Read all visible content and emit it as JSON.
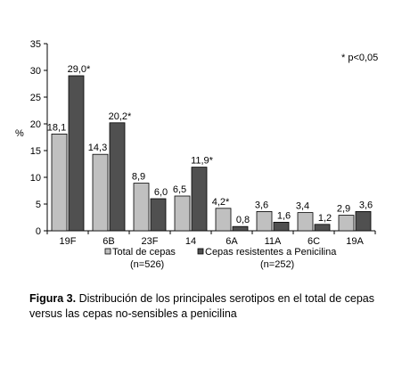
{
  "chart_data": {
    "type": "bar",
    "categories": [
      "19F",
      "6B",
      "23F",
      "14",
      "6A",
      "11A",
      "6C",
      "19A"
    ],
    "series": [
      {
        "name": "Total de cepas (n=526)",
        "legend_line1": "Total de cepas",
        "legend_line2": "(n=526)",
        "color": "#c0c0c0",
        "values": [
          18.1,
          14.3,
          8.9,
          6.5,
          4.2,
          3.6,
          3.4,
          2.9
        ],
        "labels": [
          "18,1",
          "14,3",
          "8,9",
          "6,5",
          "4,2*",
          "3,6",
          "3,4",
          "2,9"
        ]
      },
      {
        "name": "Cepas resistentes a Penicilina (n=252)",
        "legend_line1": "Cepas resistentes a Penicilina",
        "legend_line2": "(n=252)",
        "color": "#505050",
        "values": [
          29.0,
          20.2,
          6.0,
          11.9,
          0.8,
          1.6,
          1.2,
          3.6
        ],
        "labels": [
          "29,0*",
          "20,2*",
          "6,0",
          "11,9*",
          "0,8",
          "1,6",
          "1,2",
          "3,6"
        ]
      }
    ],
    "ylabel": "%",
    "ylim": [
      0,
      35
    ],
    "yticks": [
      0,
      5,
      10,
      15,
      20,
      25,
      30,
      35
    ],
    "grid": false,
    "legend_position": "bottom",
    "annotation": "* p<0,05"
  },
  "caption": {
    "bold": "Figura 3.",
    "text": " Distribución de los principales serotipos en el total de cepas versus las cepas no-sensibles a penicilina"
  }
}
